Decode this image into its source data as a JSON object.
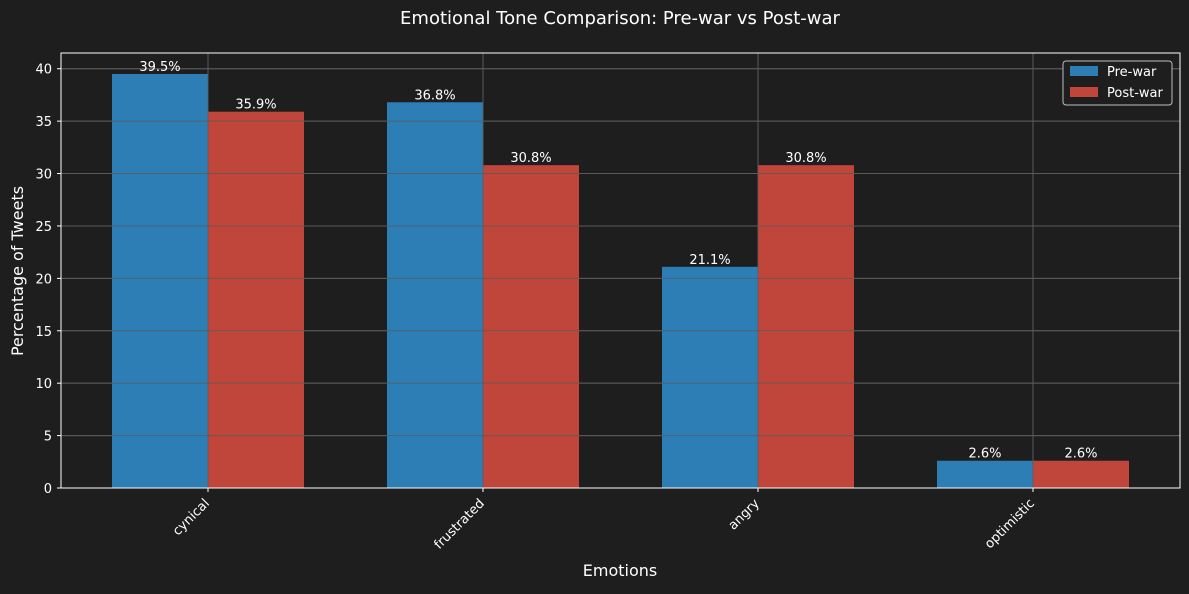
{
  "chart_data": {
    "type": "bar",
    "title": "Emotional Tone Comparison: Pre-war vs Post-war",
    "xlabel": "Emotions",
    "ylabel": "Percentage of Tweets",
    "categories": [
      "cynical",
      "frustrated",
      "angry",
      "optimistic"
    ],
    "series": [
      {
        "name": "Pre-war",
        "values": [
          39.5,
          36.8,
          21.1,
          2.6
        ],
        "labels": [
          "39.5%",
          "36.8%",
          "21.1%",
          "2.6%"
        ],
        "color": "#2e7eb6"
      },
      {
        "name": "Post-war",
        "values": [
          35.9,
          30.8,
          30.8,
          2.6
        ],
        "labels": [
          "35.9%",
          "30.8%",
          "30.8%",
          "2.6%"
        ],
        "color": "#c0453a"
      }
    ],
    "ylim": [
      0,
      41.5
    ],
    "yticks": [
      0,
      5,
      10,
      15,
      20,
      25,
      30,
      35,
      40
    ],
    "ytick_labels": [
      "0",
      "5",
      "10",
      "15",
      "20",
      "25",
      "30",
      "35",
      "40"
    ],
    "grid": true,
    "legend_position": "top-right",
    "xtick_rotation": "45"
  },
  "colors": {
    "background": "#1e1e1e",
    "text": "#ffffff",
    "grid": "#5a5a5a"
  }
}
